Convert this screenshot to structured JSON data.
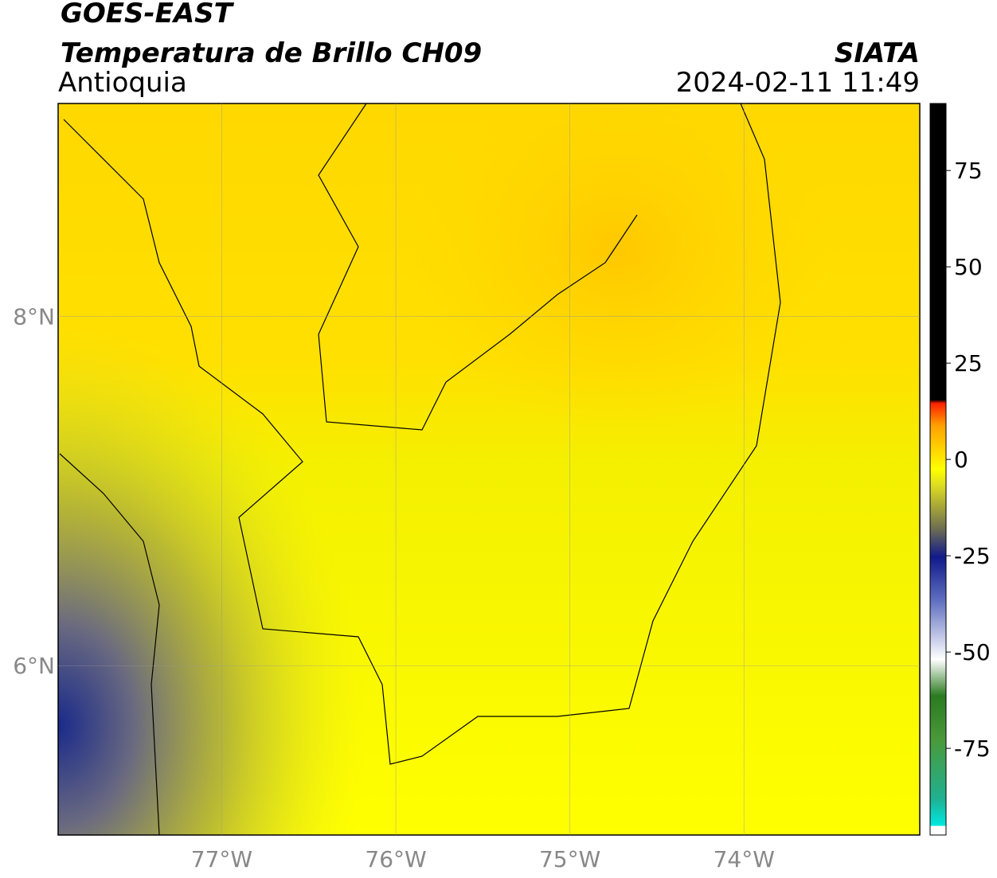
{
  "header": {
    "title": "GOES-EAST",
    "subtitle": "Temperatura de Brillo CH09",
    "source": "SIATA",
    "region": "Antioquia",
    "datetime": "2024-02-11 11:49"
  },
  "map": {
    "xlim": [
      -77.94,
      -72.99
    ],
    "ylim": [
      5.03,
      9.22
    ],
    "xticks": [
      {
        "value": -77,
        "label": "77°W"
      },
      {
        "value": -76,
        "label": "76°W"
      },
      {
        "value": -75,
        "label": "75°W"
      },
      {
        "value": -74,
        "label": "74°W"
      }
    ],
    "yticks": [
      {
        "value": 8,
        "label": "8°N"
      },
      {
        "value": 6,
        "label": "6°N"
      }
    ],
    "grid": true
  },
  "colorbar": {
    "lim": [
      -97.5,
      92.4
    ],
    "ticks": [
      75,
      50,
      25,
      0,
      -25,
      -50,
      -75
    ]
  }
}
